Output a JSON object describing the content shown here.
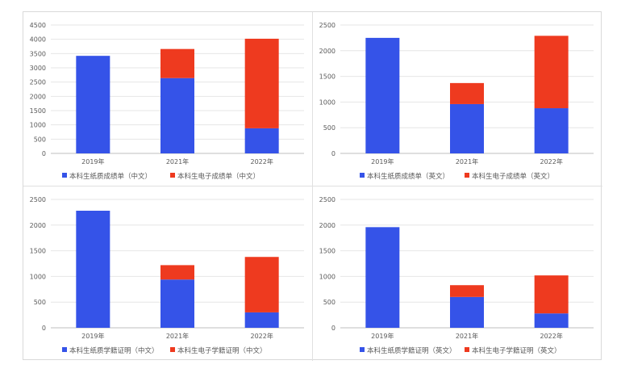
{
  "chart_data": [
    {
      "type": "bar",
      "stacked": true,
      "categories": [
        "2019年",
        "2021年",
        "2022年"
      ],
      "ylim": [
        0,
        4500
      ],
      "yticks": [
        0,
        500,
        1000,
        1500,
        2000,
        2500,
        3000,
        3500,
        4000,
        4500
      ],
      "series": [
        {
          "name": "本科生纸质成绩单（中文）",
          "color": "#3553e8",
          "values": [
            3420,
            2640,
            880
          ]
        },
        {
          "name": "本科生电子成绩单（中文）",
          "color": "#ee3a1f",
          "values": [
            0,
            1020,
            3140
          ]
        }
      ],
      "legend_position": "bottom",
      "grid": true
    },
    {
      "type": "bar",
      "stacked": true,
      "categories": [
        "2019年",
        "2021年",
        "2022年"
      ],
      "ylim": [
        0,
        2500
      ],
      "yticks": [
        0,
        500,
        1000,
        1500,
        2000,
        2500
      ],
      "series": [
        {
          "name": "本科生纸质成绩单（英文）",
          "color": "#3553e8",
          "values": [
            2250,
            960,
            880
          ]
        },
        {
          "name": "本科生电子成绩单（英文）",
          "color": "#ee3a1f",
          "values": [
            0,
            410,
            1410
          ]
        }
      ],
      "legend_position": "bottom",
      "grid": true
    },
    {
      "type": "bar",
      "stacked": true,
      "categories": [
        "2019年",
        "2021年",
        "2022年"
      ],
      "ylim": [
        0,
        2500
      ],
      "yticks": [
        0,
        500,
        1000,
        1500,
        2000,
        2500
      ],
      "series": [
        {
          "name": "本科生纸质学籍证明（中文）",
          "color": "#3553e8",
          "values": [
            2280,
            940,
            300
          ]
        },
        {
          "name": "本科生电子学籍证明（中文）",
          "color": "#ee3a1f",
          "values": [
            0,
            280,
            1080
          ]
        }
      ],
      "legend_position": "bottom",
      "grid": true
    },
    {
      "type": "bar",
      "stacked": true,
      "categories": [
        "2019年",
        "2021年",
        "2022年"
      ],
      "ylim": [
        0,
        2500
      ],
      "yticks": [
        0,
        500,
        1000,
        1500,
        2000,
        2500
      ],
      "series": [
        {
          "name": "本科生纸质学籍证明（英文）",
          "color": "#3553e8",
          "values": [
            1960,
            600,
            280
          ]
        },
        {
          "name": "本科生电子学籍证明（英文）",
          "color": "#ee3a1f",
          "values": [
            0,
            230,
            740
          ]
        }
      ],
      "legend_position": "bottom",
      "grid": true
    }
  ]
}
